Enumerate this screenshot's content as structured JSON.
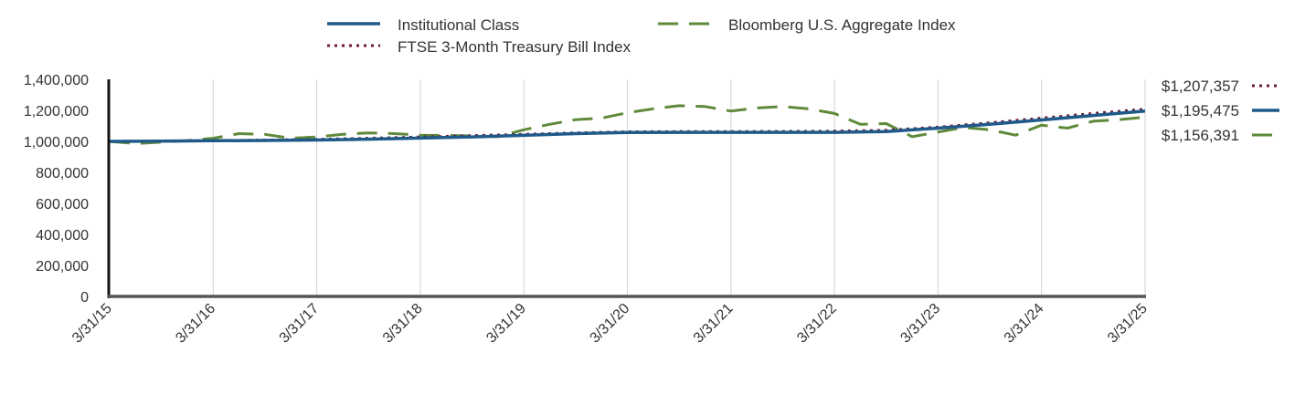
{
  "chart_data": {
    "type": "line",
    "title": "",
    "xlabel": "",
    "ylabel": "",
    "ylim": [
      0,
      1400000
    ],
    "yticks": [
      "0",
      "200,000",
      "400,000",
      "600,000",
      "800,000",
      "1,000,000",
      "1,200,000",
      "1,400,000"
    ],
    "ytick_values": [
      0,
      200000,
      400000,
      600000,
      800000,
      1000000,
      1200000,
      1400000
    ],
    "xlim": [
      0,
      10
    ],
    "x_tick_labels": [
      "3/31/15",
      "3/31/16",
      "3/31/17",
      "3/31/18",
      "3/31/19",
      "3/31/20",
      "3/31/21",
      "3/31/22",
      "3/31/23",
      "3/31/24",
      "3/31/25"
    ],
    "x_tick_positions": [
      0,
      1,
      2,
      3,
      4,
      5,
      6,
      7,
      8,
      9,
      10
    ],
    "grid": "vertical",
    "legend_position": "top",
    "series": [
      {
        "name": "Institutional Class",
        "color": "#1f5a8a",
        "style": "solid",
        "end_label": "$1,195,475",
        "x": [
          0,
          0.5,
          1,
          1.5,
          2,
          2.5,
          3,
          3.5,
          4,
          4.5,
          5,
          5.5,
          6,
          6.5,
          7,
          7.5,
          8,
          8.5,
          9,
          9.5,
          10
        ],
        "values": [
          1000000,
          1002000,
          1004000,
          1006000,
          1009000,
          1014000,
          1021000,
          1029000,
          1039000,
          1050000,
          1057000,
          1058000,
          1058000,
          1058000,
          1058000,
          1063000,
          1085000,
          1110000,
          1138000,
          1167000,
          1195475
        ]
      },
      {
        "name": "FTSE 3-Month Treasury Bill Index",
        "color": "#6b1a3a",
        "style": "dotted",
        "end_label": "$1,207,357",
        "x": [
          0,
          0.5,
          1,
          1.5,
          2,
          2.5,
          3,
          3.5,
          4,
          4.5,
          5,
          5.5,
          6,
          6.5,
          7,
          7.5,
          8,
          8.5,
          9,
          9.5,
          10
        ],
        "values": [
          1000000,
          1002000,
          1005000,
          1008000,
          1013000,
          1020000,
          1028000,
          1037000,
          1045000,
          1055000,
          1062000,
          1063000,
          1063000,
          1064000,
          1066000,
          1072000,
          1092000,
          1120000,
          1150000,
          1180000,
          1207357
        ]
      },
      {
        "name": "Bloomberg U.S. Aggregate Index",
        "color": "#5e8a3a",
        "style": "dashed",
        "end_label": "$1,156,391",
        "x": [
          0,
          0.25,
          0.5,
          0.75,
          1,
          1.25,
          1.5,
          1.75,
          2,
          2.25,
          2.5,
          2.75,
          3,
          3.25,
          3.5,
          3.75,
          4,
          4.25,
          4.5,
          4.75,
          5,
          5.25,
          5.5,
          5.75,
          6,
          6.25,
          6.5,
          6.75,
          7,
          7.25,
          7.5,
          7.75,
          8,
          8.25,
          8.5,
          8.75,
          9,
          9.25,
          9.5,
          9.75,
          10
        ],
        "values": [
          1000000,
          985000,
          995000,
          1005000,
          1020000,
          1050000,
          1045000,
          1020000,
          1028000,
          1045000,
          1055000,
          1050000,
          1040000,
          1038000,
          1035000,
          1030000,
          1075000,
          1110000,
          1140000,
          1150000,
          1185000,
          1210000,
          1230000,
          1225000,
          1195000,
          1215000,
          1225000,
          1210000,
          1180000,
          1110000,
          1115000,
          1030000,
          1060000,
          1090000,
          1075000,
          1040000,
          1105000,
          1085000,
          1130000,
          1140000,
          1156391
        ]
      }
    ]
  }
}
